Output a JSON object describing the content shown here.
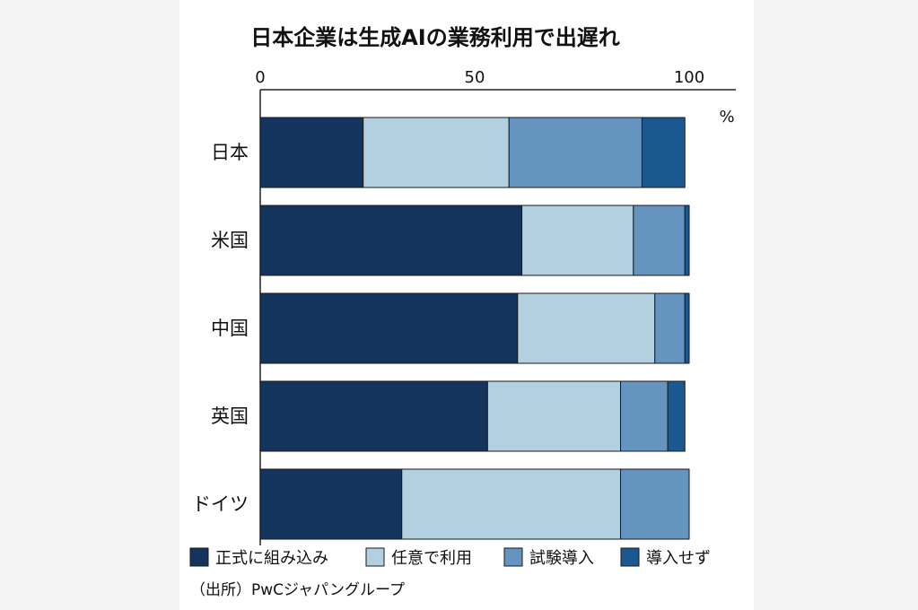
{
  "chart_data": {
    "type": "bar",
    "orientation": "horizontal",
    "stacked": true,
    "title": "日本企業は生成AIの業務利用で出遅れ",
    "unit": "%",
    "xlim": [
      0,
      100
    ],
    "ticks": [
      0,
      50,
      100
    ],
    "tick_labels": [
      "0",
      "50",
      "100"
    ],
    "categories": [
      "日本",
      "米国",
      "中国",
      "英国",
      "ドイツ"
    ],
    "series": [
      {
        "name": "正式に組み込み",
        "color": "#14345e",
        "values": [
          24,
          61,
          60,
          53,
          33
        ]
      },
      {
        "name": "任意で利用",
        "color": "#b3d0e1",
        "values": [
          34,
          26,
          32,
          31,
          51
        ]
      },
      {
        "name": "試験導入",
        "color": "#6694c1",
        "values": [
          31,
          12,
          7,
          11,
          16
        ]
      },
      {
        "name": "導入せず",
        "color": "#1c5890",
        "values": [
          10,
          1,
          1,
          4,
          0
        ]
      }
    ],
    "source": "（出所）PwCジャパングループ"
  }
}
